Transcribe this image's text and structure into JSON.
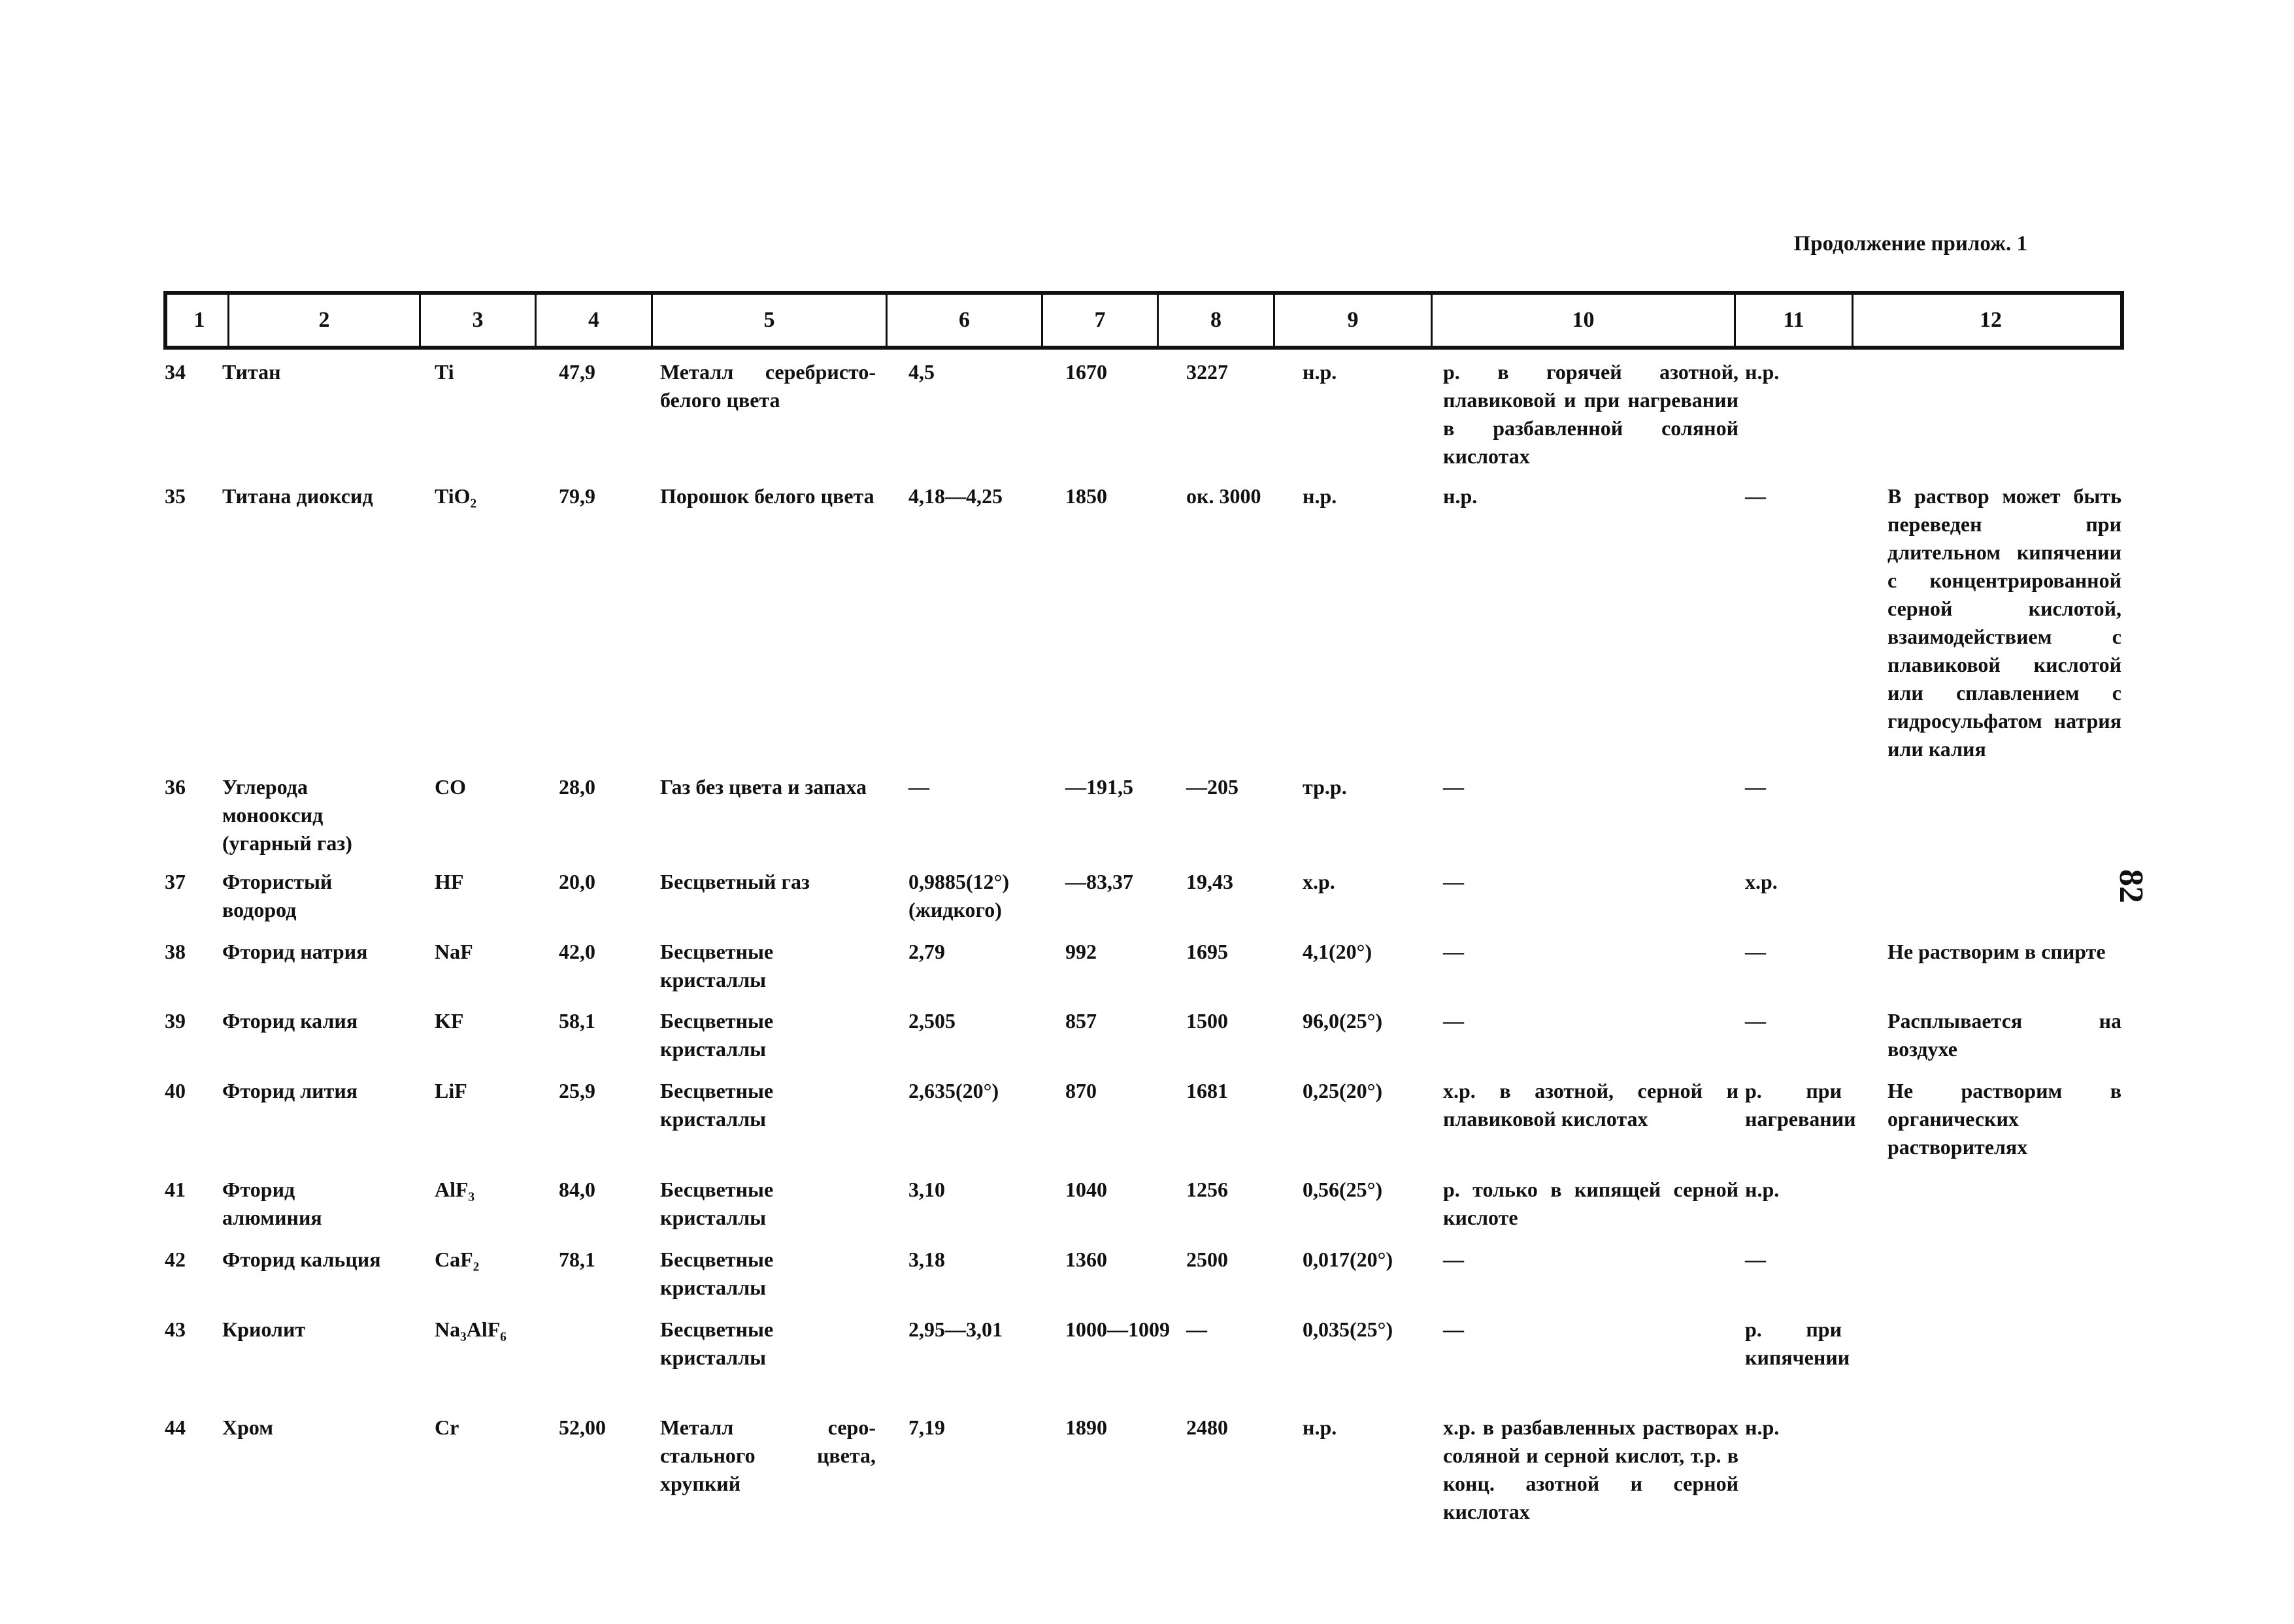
{
  "header_note": "Продолжение прилож. 1",
  "page_number": "82",
  "column_numbers": [
    "1",
    "2",
    "3",
    "4",
    "5",
    "6",
    "7",
    "8",
    "9",
    "10",
    "11",
    "12"
  ],
  "rows": [
    {
      "n": "34",
      "name": "Титан",
      "formula": "Ti",
      "mass": "47,9",
      "desc": "Металл серебристо-белого цвета",
      "density": "4,5",
      "tmelt": "1670",
      "tboil": "3227",
      "water": "н.р.",
      "acids": "р. в горячей азотной, плавиковой и при нагревании в разбавленной соляной кислотах",
      "alkali": "н.р.",
      "note": ""
    },
    {
      "n": "35",
      "name": "Титана диоксид",
      "formula": "TiO₂",
      "mass": "79,9",
      "desc": "Порошок белого цвета",
      "density": "4,18—4,25",
      "tmelt": "1850",
      "tboil": "ок. 3000",
      "water": "н.р.",
      "acids": "н.р.",
      "alkali": "—",
      "note": "В раствор может быть переведен при длительном кипячении с концентрированной серной кислотой, взаимодействием с плавиковой кислотой или сплавлением с гидросульфатом натрия или калия"
    },
    {
      "n": "36",
      "name": "Углерода монооксид (угарный газ)",
      "formula": "CO",
      "mass": "28,0",
      "desc": "Газ без цвета и запаха",
      "density": "—",
      "tmelt": "—191,5",
      "tboil": "—205",
      "water": "тр.р.",
      "acids": "—",
      "alkali": "—",
      "note": ""
    },
    {
      "n": "37",
      "name": "Фтористый водород",
      "formula": "HF",
      "mass": "20,0",
      "desc": "Бесцветный газ",
      "density": "0,9885(12°) (жидкого)",
      "tmelt": "—83,37",
      "tboil": "19,43",
      "water": "х.р.",
      "acids": "—",
      "alkali": "х.р.",
      "note": ""
    },
    {
      "n": "38",
      "name": "Фторид натрия",
      "formula": "NaF",
      "mass": "42,0",
      "desc": "Бесцветные кристаллы",
      "density": "2,79",
      "tmelt": "992",
      "tboil": "1695",
      "water": "4,1(20°)",
      "acids": "—",
      "alkali": "—",
      "note": "Не растворим в спирте"
    },
    {
      "n": "39",
      "name": "Фторид калия",
      "formula": "KF",
      "mass": "58,1",
      "desc": "Бесцветные кристаллы",
      "density": "2,505",
      "tmelt": "857",
      "tboil": "1500",
      "water": "96,0(25°)",
      "acids": "—",
      "alkali": "—",
      "note": "Расплывается на воздухе"
    },
    {
      "n": "40",
      "name": "Фторид лития",
      "formula": "LiF",
      "mass": "25,9",
      "desc": "Бесцветные кристаллы",
      "density": "2,635(20°)",
      "tmelt": "870",
      "tboil": "1681",
      "water": "0,25(20°)",
      "acids": "х.р. в азотной, серной и плавиковой кислотах",
      "alkali": "р. при нагревании",
      "note": "Не растворим в органических растворителях"
    },
    {
      "n": "41",
      "name": "Фторид алюминия",
      "formula": "AlF₃",
      "mass": "84,0",
      "desc": "Бесцветные кристаллы",
      "density": "3,10",
      "tmelt": "1040",
      "tboil": "1256",
      "water": "0,56(25°)",
      "acids": "р. только в кипящей серной кислоте",
      "alkali": "н.р.",
      "note": ""
    },
    {
      "n": "42",
      "name": "Фторид кальция",
      "formula": "CaF₂",
      "mass": "78,1",
      "desc": "Бесцветные кристаллы",
      "density": "3,18",
      "tmelt": "1360",
      "tboil": "2500",
      "water": "0,017(20°)",
      "acids": "—",
      "alkali": "—",
      "note": ""
    },
    {
      "n": "43",
      "name": "Криолит",
      "formula": "Na₃AlF₆",
      "mass": "",
      "desc": "Бесцветные кристаллы",
      "density": "2,95—3,01",
      "tmelt": "1000—1009",
      "tboil": "—",
      "water": "0,035(25°)",
      "acids": "—",
      "alkali": "р. при кипячении",
      "note": ""
    },
    {
      "n": "44",
      "name": "Хром",
      "formula": "Cr",
      "mass": "52,00",
      "desc": "Металл серо-стального цвета, хрупкий",
      "density": "7,19",
      "tmelt": "1890",
      "tboil": "2480",
      "water": "н.р.",
      "acids": "х.р. в разбавленных растворах соляной и серной кислот, т.р. в конц. азотной и серной кислотах",
      "alkali": "н.р.",
      "note": ""
    }
  ]
}
